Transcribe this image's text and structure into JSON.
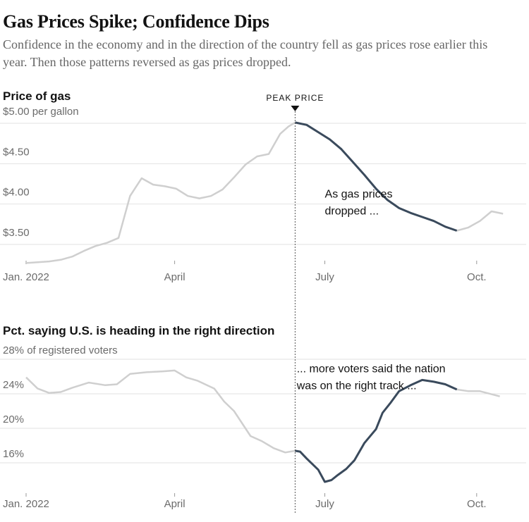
{
  "headline": "Gas Prices Spike; Confidence Dips",
  "dek": "Confidence in the economy and in the direction of the country fell as gas prices rose earlier this year. Then those patterns reversed as gas prices dropped.",
  "peak_label": "PEAK PRICE",
  "colors": {
    "highlight": "#3a4a5c",
    "muted": "#cfcfcf",
    "grid": "#e2e2e2"
  },
  "chart_data": [
    {
      "type": "line",
      "title": "Price of gas",
      "ylabel": "",
      "ylim": [
        3.25,
        5.0
      ],
      "yticks": [
        {
          "value": 5.0,
          "label": "$5.00 per gallon"
        },
        {
          "value": 4.5,
          "label": "$4.50"
        },
        {
          "value": 4.0,
          "label": "$4.00"
        },
        {
          "value": 3.5,
          "label": "$3.50"
        }
      ],
      "x_ticks": [
        {
          "date": "2022-01-01",
          "label": "Jan. 2022"
        },
        {
          "date": "2022-04-01",
          "label": "April"
        },
        {
          "date": "2022-07-01",
          "label": "July"
        },
        {
          "date": "2022-10-01",
          "label": "Oct."
        }
      ],
      "x_range": [
        "2022-01-01",
        "2022-10-31"
      ],
      "peak_date": "2022-06-13",
      "highlight_range": [
        "2022-06-13",
        "2022-09-19"
      ],
      "annotation": {
        "lines": [
          "As gas prices",
          "dropped ..."
        ],
        "date": "2022-07-01",
        "value": 4.08
      },
      "x": [
        "2022-01-01",
        "2022-01-08",
        "2022-01-15",
        "2022-01-22",
        "2022-01-29",
        "2022-02-05",
        "2022-02-12",
        "2022-02-19",
        "2022-02-26",
        "2022-03-05",
        "2022-03-12",
        "2022-03-19",
        "2022-03-26",
        "2022-04-02",
        "2022-04-09",
        "2022-04-16",
        "2022-04-23",
        "2022-04-30",
        "2022-05-07",
        "2022-05-14",
        "2022-05-21",
        "2022-05-28",
        "2022-06-04",
        "2022-06-09",
        "2022-06-13",
        "2022-06-20",
        "2022-06-27",
        "2022-07-04",
        "2022-07-11",
        "2022-07-18",
        "2022-07-25",
        "2022-08-01",
        "2022-08-08",
        "2022-08-15",
        "2022-08-22",
        "2022-08-29",
        "2022-09-05",
        "2022-09-12",
        "2022-09-19",
        "2022-09-26",
        "2022-10-03",
        "2022-10-10",
        "2022-10-17"
      ],
      "y": [
        3.27,
        3.28,
        3.29,
        3.31,
        3.35,
        3.42,
        3.48,
        3.52,
        3.58,
        4.1,
        4.32,
        4.24,
        4.22,
        4.19,
        4.1,
        4.07,
        4.1,
        4.18,
        4.33,
        4.49,
        4.59,
        4.62,
        4.87,
        4.96,
        5.01,
        4.98,
        4.89,
        4.8,
        4.68,
        4.52,
        4.36,
        4.19,
        4.05,
        3.95,
        3.89,
        3.84,
        3.79,
        3.72,
        3.67,
        3.71,
        3.79,
        3.91,
        3.88
      ]
    },
    {
      "type": "line",
      "title": "Pct. saying U.S. is heading in the right direction",
      "ylabel": "",
      "ylim": [
        13,
        28
      ],
      "yticks": [
        {
          "value": 28,
          "label": "28% of registered voters"
        },
        {
          "value": 24,
          "label": "24%"
        },
        {
          "value": 20,
          "label": "20%"
        },
        {
          "value": 16,
          "label": "16%"
        }
      ],
      "x_ticks": [
        {
          "date": "2022-01-01",
          "label": "Jan. 2022"
        },
        {
          "date": "2022-04-01",
          "label": "April"
        },
        {
          "date": "2022-07-01",
          "label": "July"
        },
        {
          "date": "2022-10-01",
          "label": "Oct."
        }
      ],
      "x_range": [
        "2022-01-01",
        "2022-10-31"
      ],
      "peak_date": "2022-06-13",
      "highlight_range": [
        "2022-06-13",
        "2022-09-19"
      ],
      "annotation": {
        "lines": [
          "... more voters said the nation",
          "was on the right track ..."
        ],
        "date": "2022-06-14",
        "value": 26.5
      },
      "x": [
        "2022-01-01",
        "2022-01-08",
        "2022-01-15",
        "2022-01-22",
        "2022-01-29",
        "2022-02-08",
        "2022-02-18",
        "2022-02-25",
        "2022-03-05",
        "2022-03-15",
        "2022-03-25",
        "2022-04-01",
        "2022-04-08",
        "2022-04-15",
        "2022-04-25",
        "2022-05-01",
        "2022-05-07",
        "2022-05-17",
        "2022-05-24",
        "2022-05-31",
        "2022-06-07",
        "2022-06-13",
        "2022-06-16",
        "2022-06-20",
        "2022-06-27",
        "2022-07-01",
        "2022-07-05",
        "2022-07-09",
        "2022-07-14",
        "2022-07-19",
        "2022-07-25",
        "2022-08-01",
        "2022-08-05",
        "2022-08-10",
        "2022-08-15",
        "2022-08-22",
        "2022-08-29",
        "2022-09-05",
        "2022-09-12",
        "2022-09-19",
        "2022-09-26",
        "2022-10-03",
        "2022-10-15"
      ],
      "y": [
        25.9,
        24.6,
        24.1,
        24.2,
        24.7,
        25.3,
        25.0,
        25.1,
        26.3,
        26.5,
        26.6,
        26.7,
        25.9,
        25.5,
        24.6,
        23.1,
        22.0,
        19.1,
        18.5,
        17.7,
        17.2,
        17.4,
        17.3,
        16.5,
        15.2,
        13.8,
        14.0,
        14.6,
        15.3,
        16.3,
        18.3,
        19.9,
        21.8,
        23.0,
        24.3,
        25.0,
        25.6,
        25.4,
        25.1,
        24.5,
        24.3,
        24.3,
        23.7
      ]
    }
  ]
}
